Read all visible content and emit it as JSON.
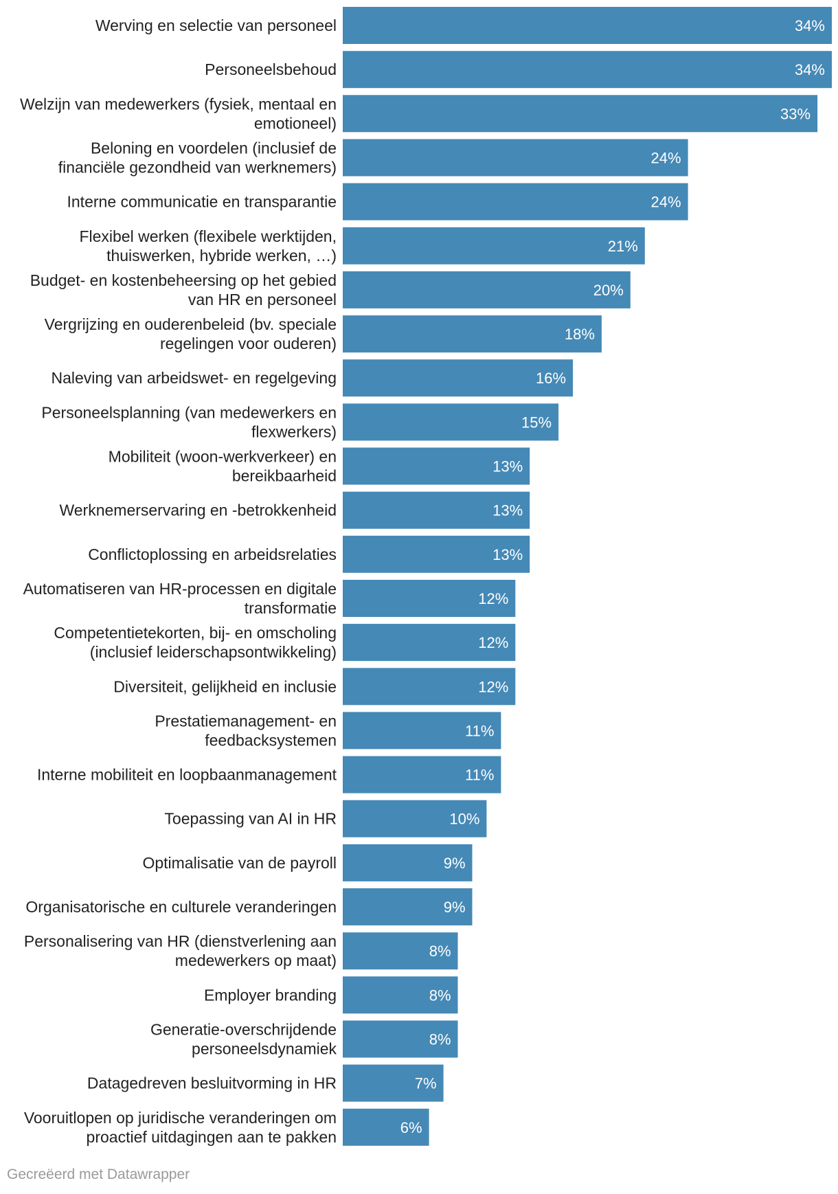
{
  "chart_data": {
    "type": "bar",
    "orientation": "horizontal",
    "categories": [
      "Werving en selectie van personeel",
      "Personeelsbehoud",
      "Welzijn van medewerkers (fysiek, mentaal en emotioneel)",
      "Beloning en voordelen (inclusief de financiële gezondheid van werknemers)",
      "Interne communicatie en transparantie",
      "Flexibel werken (flexibele werktijden, thuiswerken, hybride werken, …)",
      "Budget- en kostenbeheersing op het gebied van HR en personeel",
      "Vergrijzing en ouderenbeleid (bv. speciale regelingen voor ouderen)",
      "Naleving van arbeidswet- en regelgeving",
      "Personeelsplanning (van medewerkers en flexwerkers)",
      "Mobiliteit (woon-werkverkeer) en bereikbaarheid",
      "Werknemerservaring en -betrokkenheid",
      "Conflictoplossing en arbeidsrelaties",
      "Automatiseren van HR-processen en digitale transformatie",
      "Competentietekorten, bij- en omscholing (inclusief leiderschapsontwikkeling)",
      "Diversiteit, gelijkheid en inclusie",
      "Prestatiemanagement- en feedbacksystemen",
      "Interne mobiliteit en loopbaanmanagement",
      "Toepassing van AI in HR",
      "Optimalisatie van de payroll",
      "Organisatorische en culturele veranderingen",
      "Personalisering van HR (dienstverlening aan medewerkers op maat)",
      "Employer branding",
      "Generatie-overschrijdende personeelsdynamiek",
      "Datagedreven besluitvorming in HR",
      "Vooruitlopen op juridische veranderingen om proactief uitdagingen aan te pakken"
    ],
    "label_lines": [
      [
        "Werving en selectie van personeel"
      ],
      [
        "Personeelsbehoud"
      ],
      [
        "Welzijn van medewerkers (fysiek, mentaal en",
        "emotioneel)"
      ],
      [
        "Beloning en voordelen (inclusief de",
        "financiële gezondheid van werknemers)"
      ],
      [
        "Interne communicatie en transparantie"
      ],
      [
        "Flexibel werken (flexibele werktijden,",
        "thuiswerken, hybride werken, …)"
      ],
      [
        "Budget- en kostenbeheersing op het gebied",
        "van HR en personeel"
      ],
      [
        "Vergrijzing en ouderenbeleid (bv. speciale",
        "regelingen voor ouderen)"
      ],
      [
        "Naleving van arbeidswet- en regelgeving"
      ],
      [
        "Personeelsplanning (van medewerkers en",
        "flexwerkers)"
      ],
      [
        "Mobiliteit (woon-werkverkeer) en",
        "bereikbaarheid"
      ],
      [
        "Werknemerservaring en -betrokkenheid"
      ],
      [
        "Conflictoplossing en arbeidsrelaties"
      ],
      [
        "Automatiseren van HR-processen en digitale",
        "transformatie"
      ],
      [
        "Competentietekorten, bij- en omscholing",
        "(inclusief leiderschapsontwikkeling)"
      ],
      [
        "Diversiteit, gelijkheid en inclusie"
      ],
      [
        "Prestatiemanagement- en",
        "feedbacksystemen"
      ],
      [
        "Interne mobiliteit en loopbaanmanagement"
      ],
      [
        "Toepassing van AI in HR"
      ],
      [
        "Optimalisatie van de payroll"
      ],
      [
        "Organisatorische en culturele veranderingen"
      ],
      [
        "Personalisering van HR (dienstverlening aan",
        "medewerkers op maat)"
      ],
      [
        "Employer branding"
      ],
      [
        "Generatie-overschrijdende",
        "personeelsdynamiek"
      ],
      [
        "Datagedreven besluitvorming in HR"
      ],
      [
        "Vooruitlopen op juridische veranderingen om",
        "proactief uitdagingen aan te pakken"
      ]
    ],
    "values": [
      34,
      34,
      33,
      24,
      24,
      21,
      20,
      18,
      16,
      15,
      13,
      13,
      13,
      12,
      12,
      12,
      11,
      11,
      10,
      9,
      9,
      8,
      8,
      8,
      7,
      6
    ],
    "value_labels": [
      "34%",
      "34%",
      "33%",
      "24%",
      "24%",
      "21%",
      "20%",
      "18%",
      "16%",
      "15%",
      "13%",
      "13%",
      "13%",
      "12%",
      "12%",
      "12%",
      "11%",
      "11%",
      "10%",
      "9%",
      "9%",
      "8%",
      "8%",
      "8%",
      "7%",
      "6%"
    ],
    "xlim": [
      0,
      34
    ],
    "unit": "%",
    "grid": false,
    "legend": "none",
    "bar_color": "#4589b6"
  },
  "footer": {
    "credit": "Gecreëerd met Datawrapper"
  }
}
